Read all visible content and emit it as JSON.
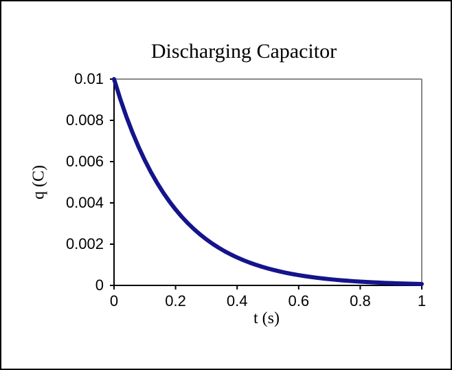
{
  "chart_data": {
    "type": "line",
    "title": "Discharging Capacitor",
    "xlabel": "t (s)",
    "ylabel": "q (C)",
    "xlim": [
      0,
      1
    ],
    "ylim": [
      0,
      0.01
    ],
    "grid": false,
    "legend": "none",
    "x_ticks": [
      0,
      0.2,
      0.4,
      0.6,
      0.8,
      1
    ],
    "x_tick_labels": [
      "0",
      "0.2",
      "0.4",
      "0.6",
      "0.8",
      "1"
    ],
    "y_ticks": [
      0,
      0.002,
      0.004,
      0.006,
      0.008,
      0.01
    ],
    "y_tick_labels": [
      "0",
      "0.002",
      "0.004",
      "0.006",
      "0.008",
      "0.01"
    ],
    "colors": {
      "series": "#14148C",
      "axis": "#000000",
      "plot_border": "#888888",
      "background": "#FFFFFF",
      "text": "#000000"
    },
    "series": [
      {
        "color": "#14148C",
        "x": [
          0,
          0.02,
          0.04,
          0.06,
          0.08,
          0.1,
          0.12,
          0.14,
          0.16,
          0.18,
          0.2,
          0.22,
          0.24,
          0.26,
          0.28,
          0.3,
          0.32,
          0.34,
          0.36,
          0.38,
          0.4,
          0.42,
          0.44,
          0.46,
          0.48,
          0.5,
          0.52,
          0.54,
          0.56,
          0.58,
          0.6,
          0.62,
          0.64,
          0.66,
          0.68,
          0.7,
          0.72,
          0.74,
          0.76,
          0.78,
          0.8,
          0.82,
          0.84,
          0.86,
          0.88,
          0.9,
          0.92,
          0.94,
          0.96,
          0.98,
          1
        ],
        "y": [
          0.01,
          0.009048,
          0.008187,
          0.007408,
          0.006703,
          0.006065,
          0.005488,
          0.004966,
          0.004493,
          0.004066,
          0.003679,
          0.003329,
          0.003012,
          0.002725,
          0.002466,
          0.002231,
          0.002019,
          0.001827,
          0.001653,
          0.001496,
          0.001353,
          0.001225,
          0.001108,
          0.001003,
          0.000907,
          0.000821,
          0.000743,
          0.000672,
          0.000608,
          0.00055,
          0.000498,
          0.00045,
          0.000408,
          0.000369,
          0.000334,
          0.000302,
          0.000273,
          0.000247,
          0.000224,
          0.000202,
          0.000183,
          0.000166,
          0.00015,
          0.000136,
          0.000123,
          0.000111,
          0.000101,
          9.1e-05,
          8.23e-05,
          7.45e-05,
          6.74e-05
        ]
      }
    ]
  }
}
